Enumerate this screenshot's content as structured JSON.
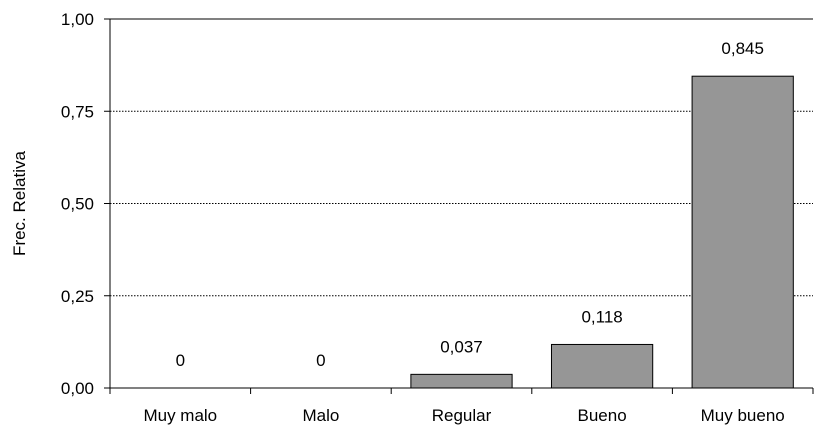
{
  "chart_data": {
    "type": "bar",
    "categories": [
      "Muy malo",
      "Malo",
      "Regular",
      "Bueno",
      "Muy bueno"
    ],
    "values": [
      0,
      0,
      0.037,
      0.118,
      0.845
    ],
    "data_labels": [
      "0",
      "0",
      "0,037",
      "0,118",
      "0,845"
    ],
    "ylabel": "Frec. Relativa",
    "xlabel": "",
    "ylim": [
      0,
      1
    ],
    "yticks": [
      0,
      0.25,
      0.5,
      0.75,
      1
    ],
    "ytick_labels": [
      "0,00",
      "0,25",
      "0,50",
      "0,75",
      "1,00"
    ],
    "grid": "horizontal-dotted",
    "legend": "none",
    "colors": {
      "bar": "#969696",
      "bar_edge": "#000000",
      "grid": "#000000"
    }
  }
}
